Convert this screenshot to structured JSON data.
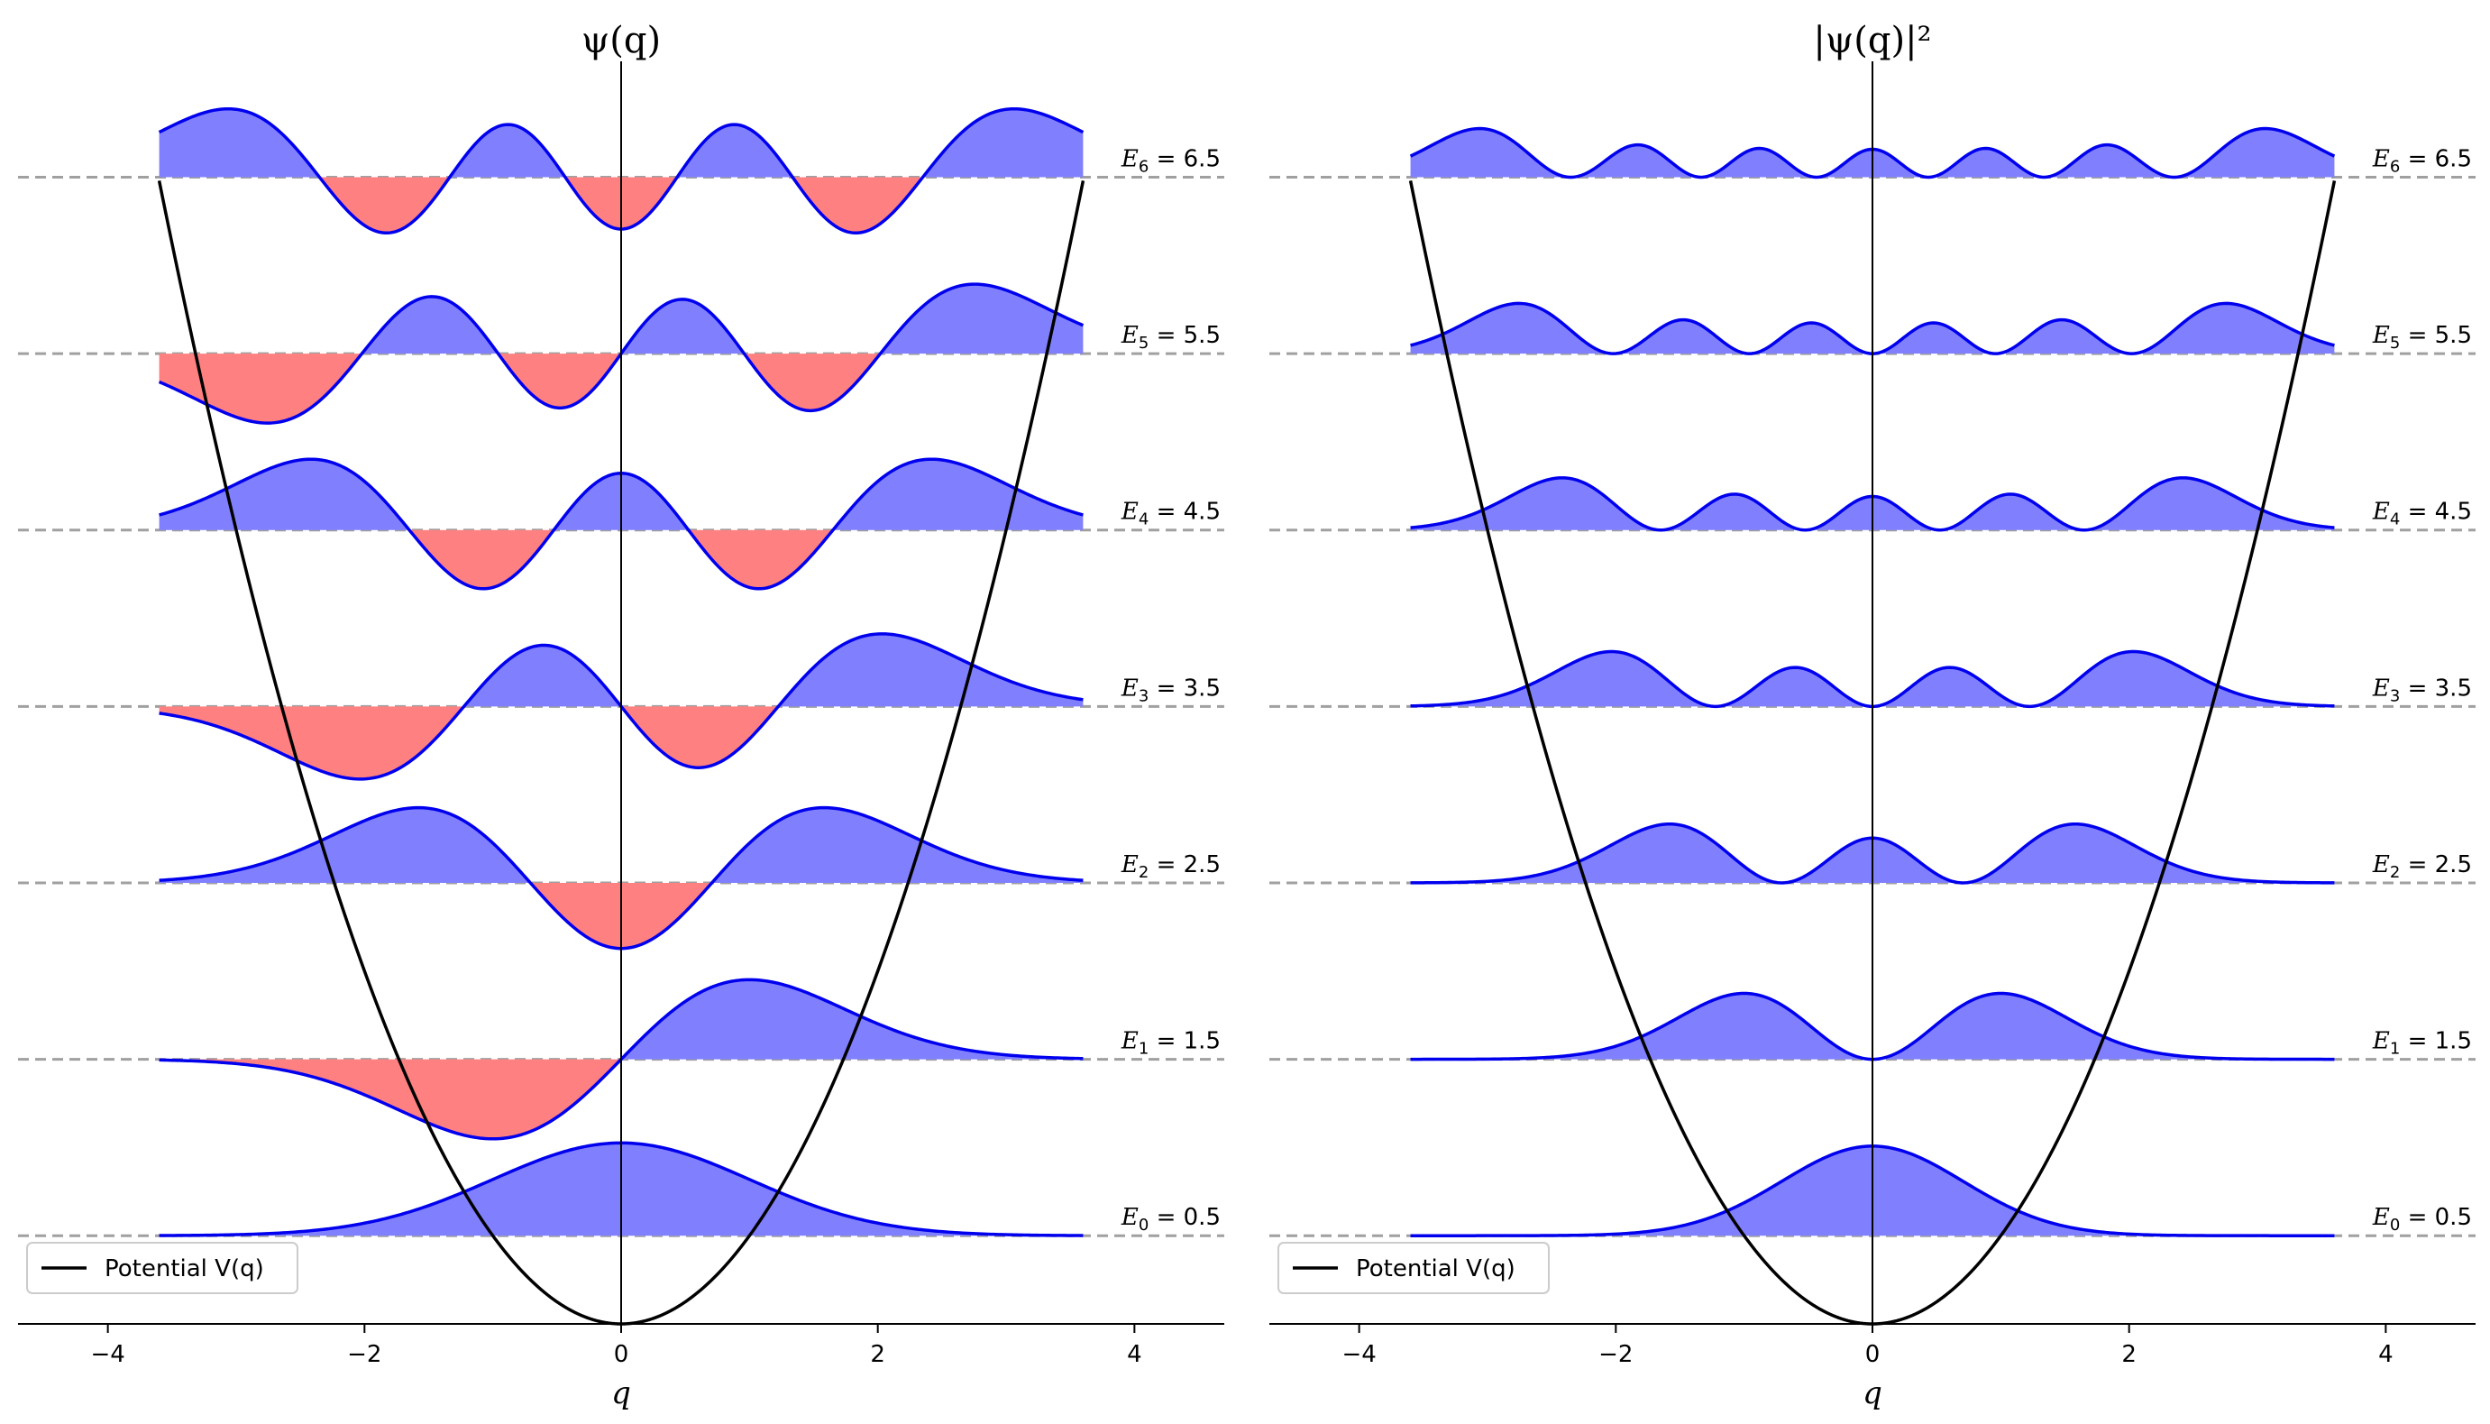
{
  "chart_data": [
    {
      "type": "line",
      "panel": "wavefunction",
      "title": "ψ(q)",
      "xlabel": "q",
      "ylabel": "",
      "xlim": [
        -4.7,
        4.7
      ],
      "ylim": [
        0,
        7.3
      ],
      "xticks": [
        -4,
        -2,
        0,
        2,
        4
      ],
      "q_range": [
        -3.6,
        3.6
      ],
      "wave_scale": 0.7,
      "potential": {
        "name": "Potential V(q)",
        "formula": "0.5*q^2",
        "color": "#000000"
      },
      "levels": [
        {
          "n": 0,
          "energy": 0.5,
          "label_main": "E",
          "label_sub": "0",
          "label_value": " = 0.5"
        },
        {
          "n": 1,
          "energy": 1.5,
          "label_main": "E",
          "label_sub": "1",
          "label_value": " = 1.5"
        },
        {
          "n": 2,
          "energy": 2.5,
          "label_main": "E",
          "label_sub": "2",
          "label_value": " = 2.5"
        },
        {
          "n": 3,
          "energy": 3.5,
          "label_main": "E",
          "label_sub": "3",
          "label_value": " = 3.5"
        },
        {
          "n": 4,
          "energy": 4.5,
          "label_main": "E",
          "label_sub": "4",
          "label_value": " = 4.5"
        },
        {
          "n": 5,
          "energy": 5.5,
          "label_main": "E",
          "label_sub": "5",
          "label_value": " = 5.5"
        },
        {
          "n": 6,
          "energy": 6.5,
          "label_main": "E",
          "label_sub": "6",
          "label_value": " = 6.5"
        }
      ],
      "colors": {
        "line": "#0000ee",
        "positive_fill": "#8080ff",
        "negative_fill": "#ff8080",
        "level_line": "#a0a0a0"
      },
      "legend": {
        "position": "lower-left",
        "label": "Potential V(q)"
      },
      "grid": false
    },
    {
      "type": "line",
      "panel": "probability",
      "title": "|ψ(q)|²",
      "xlabel": "q",
      "ylabel": "",
      "xlim": [
        -4.7,
        4.7
      ],
      "ylim": [
        0,
        7.3
      ],
      "xticks": [
        -4,
        -2,
        0,
        2,
        4
      ],
      "q_range": [
        -3.6,
        3.6
      ],
      "wave_scale": 0.9,
      "potential": {
        "name": "Potential V(q)",
        "formula": "0.5*q^2",
        "color": "#000000"
      },
      "levels": [
        {
          "n": 0,
          "energy": 0.5,
          "label_main": "E",
          "label_sub": "0",
          "label_value": " = 0.5"
        },
        {
          "n": 1,
          "energy": 1.5,
          "label_main": "E",
          "label_sub": "1",
          "label_value": " = 1.5"
        },
        {
          "n": 2,
          "energy": 2.5,
          "label_main": "E",
          "label_sub": "2",
          "label_value": " = 2.5"
        },
        {
          "n": 3,
          "energy": 3.5,
          "label_main": "E",
          "label_sub": "3",
          "label_value": " = 3.5"
        },
        {
          "n": 4,
          "energy": 4.5,
          "label_main": "E",
          "label_sub": "4",
          "label_value": " = 4.5"
        },
        {
          "n": 5,
          "energy": 5.5,
          "label_main": "E",
          "label_sub": "5",
          "label_value": " = 5.5"
        },
        {
          "n": 6,
          "energy": 6.5,
          "label_main": "E",
          "label_sub": "6",
          "label_value": " = 6.5"
        }
      ],
      "colors": {
        "line": "#0000ee",
        "positive_fill": "#8080ff",
        "negative_fill": "#ff8080",
        "level_line": "#a0a0a0"
      },
      "legend": {
        "position": "lower-left",
        "label": "Potential V(q)"
      },
      "grid": false
    }
  ]
}
